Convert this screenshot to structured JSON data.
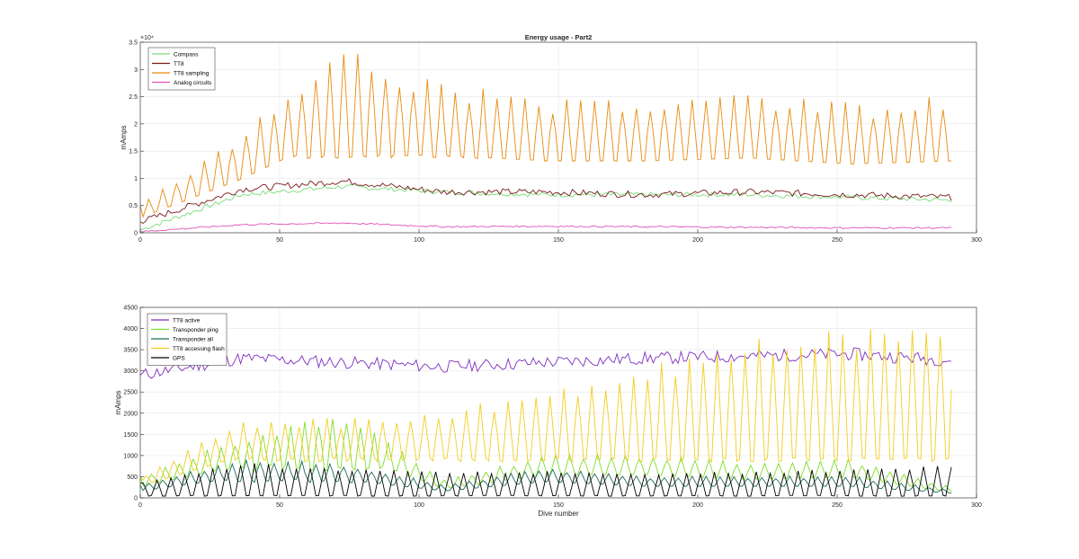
{
  "chart_data": [
    {
      "type": "line",
      "title": "Energy usage - Part2",
      "xlabel": "",
      "ylabel": "mAmps",
      "xlim": [
        0,
        300
      ],
      "ylim": [
        0,
        35000
      ],
      "x_ticks": [
        "0",
        "50",
        "100",
        "150",
        "200",
        "250",
        "300"
      ],
      "y_ticks": [
        "0",
        "0.5",
        "1",
        "1.5",
        "2",
        "2.5",
        "3",
        "3.5"
      ],
      "y_exponent": "×10⁴",
      "grid": true,
      "legend_position": "top-left",
      "series": [
        {
          "name": "Compass",
          "color": "#77dd77",
          "base": 7200,
          "amp": 450,
          "start": 500,
          "peak": 0,
          "peak_every": 0,
          "values_summary": [
            500,
            7000,
            8500,
            7500,
            7000,
            7000,
            7000,
            6500,
            6000
          ]
        },
        {
          "name": "TT8",
          "color": "#7b1a1a",
          "base": 7000,
          "amp": 600,
          "start": 2000,
          "peak": 0,
          "peak_every": 0,
          "values_summary": [
            2000,
            8000,
            9500,
            7500,
            7500,
            7000,
            7500,
            7000,
            6500
          ]
        },
        {
          "name": "TT8 sampling",
          "color": "#e98a0e",
          "base": 14000,
          "amp": 800,
          "start": 5000,
          "peak": 26000,
          "peak_every": 5,
          "values_summary": [
            5000,
            18000,
            34000,
            26000,
            24000,
            24000,
            25000,
            23000,
            24000
          ]
        },
        {
          "name": "Analog circuits",
          "color": "#e052b8",
          "base": 1100,
          "amp": 150,
          "start": 200,
          "peak": 0,
          "peak_every": 0,
          "values_summary": [
            200,
            1500,
            1800,
            1100,
            1200,
            1100,
            1000,
            900,
            900
          ]
        }
      ]
    },
    {
      "type": "line",
      "title": "",
      "xlabel": "Dive number",
      "ylabel": "mAmps",
      "xlim": [
        0,
        300
      ],
      "ylim": [
        0,
        4500
      ],
      "x_ticks": [
        "0",
        "50",
        "100",
        "150",
        "200",
        "250",
        "300"
      ],
      "y_ticks": [
        "0",
        "500",
        "1000",
        "1500",
        "2000",
        "2500",
        "3000",
        "3500",
        "4000",
        "4500"
      ],
      "grid": true,
      "legend_position": "top-left",
      "series": [
        {
          "name": "TT8 active",
          "color": "#7e2fbf",
          "base": 3250,
          "amp": 150,
          "start": 2900,
          "peak": 0,
          "peak_every": 0,
          "values_summary": [
            2900,
            3300,
            3200,
            3100,
            3200,
            3300,
            3350,
            3400,
            3250
          ]
        },
        {
          "name": "Transponder ping",
          "color": "#7ede2a",
          "base": 700,
          "amp": 150,
          "start": 500,
          "peak": 1100,
          "peak_every": 5,
          "values_summary": [
            500,
            1400,
            2000,
            400,
            1000,
            1000,
            800,
            900,
            250
          ]
        },
        {
          "name": "Transponder all",
          "color": "#1f6b58",
          "base": 400,
          "amp": 100,
          "start": 300,
          "peak": 700,
          "peak_every": 5,
          "values_summary": [
            300,
            900,
            800,
            300,
            700,
            500,
            500,
            500,
            200
          ]
        },
        {
          "name": "TT8 accessing flash",
          "color": "#f2cd1f",
          "base": 900,
          "amp": 100,
          "start": 500,
          "peak": 1800,
          "peak_every": 5,
          "values_summary": [
            500,
            1800,
            1800,
            2000,
            2500,
            3000,
            3600,
            3800,
            4200
          ]
        },
        {
          "name": "GPS",
          "color": "#000000",
          "base": 50,
          "amp": 20,
          "start": 350,
          "peak": 550,
          "peak_every": 5,
          "values_summary": [
            350,
            800,
            700,
            600,
            600,
            550,
            600,
            650,
            750
          ]
        }
      ]
    }
  ]
}
